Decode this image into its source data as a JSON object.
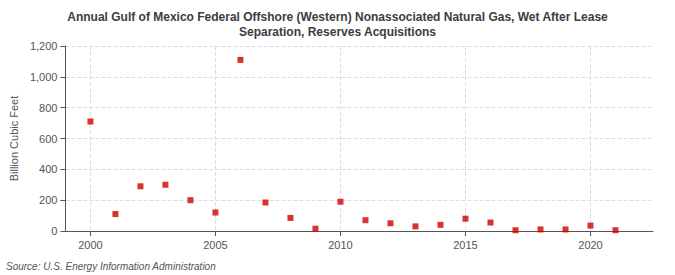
{
  "chart_data": {
    "type": "scatter",
    "title": "Annual Gulf of Mexico Federal Offshore (Western) Nonassociated Natural Gas, Wet After Lease\nSeparation, Reserves Acquisitions",
    "ylabel": "Billion Cubic Feet",
    "annotation": "Source: U.S. Energy Information Administration",
    "x": [
      2000,
      2001,
      2002,
      2003,
      2004,
      2005,
      2006,
      2007,
      2008,
      2009,
      2010,
      2011,
      2012,
      2013,
      2014,
      2015,
      2016,
      2017,
      2018,
      2019,
      2020,
      2021
    ],
    "values": [
      710,
      110,
      290,
      300,
      200,
      120,
      1110,
      185,
      85,
      15,
      190,
      70,
      50,
      30,
      40,
      80,
      55,
      5,
      10,
      10,
      35,
      5
    ],
    "color": "#cc0000",
    "marker": "square",
    "xlim": [
      1999.0,
      2022.5
    ],
    "xticks": [
      2000,
      2005,
      2010,
      2015,
      2020
    ],
    "ylim": [
      0,
      1200
    ],
    "yticks": [
      0,
      200,
      400,
      600,
      800,
      {
        "value": 1000,
        "label": "1,000"
      },
      {
        "value": 1200,
        "label": "1,200"
      }
    ],
    "grid": true
  }
}
